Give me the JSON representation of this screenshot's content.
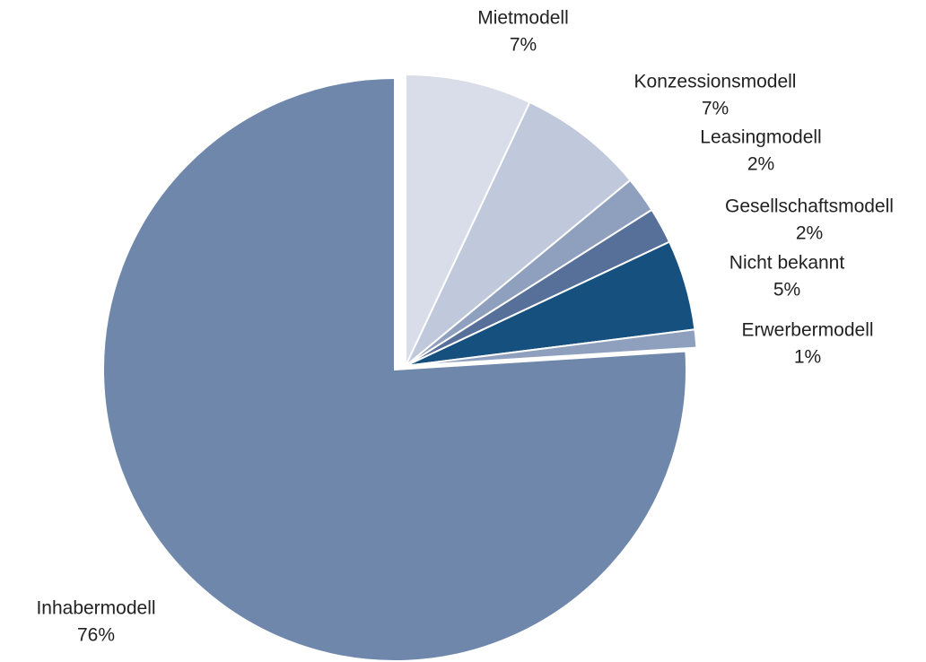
{
  "chart_data": {
    "type": "pie",
    "categories": [
      "Mietmodell",
      "Konzessionsmodell",
      "Leasingmodell",
      "Gesellschaftsmodell",
      "Nicht bekannt",
      "Erwerbermodell",
      "Inhabermodell"
    ],
    "values": [
      7,
      7,
      2,
      2,
      5,
      1,
      76
    ],
    "value_labels": [
      "7%",
      "7%",
      "2%",
      "2%",
      "5%",
      "1%",
      "76%"
    ],
    "colors": [
      "#d9dde9",
      "#c0c8db",
      "#8fa0bf",
      "#56709a",
      "#16507e",
      "#8fa0bf",
      "#6f87ab"
    ]
  }
}
